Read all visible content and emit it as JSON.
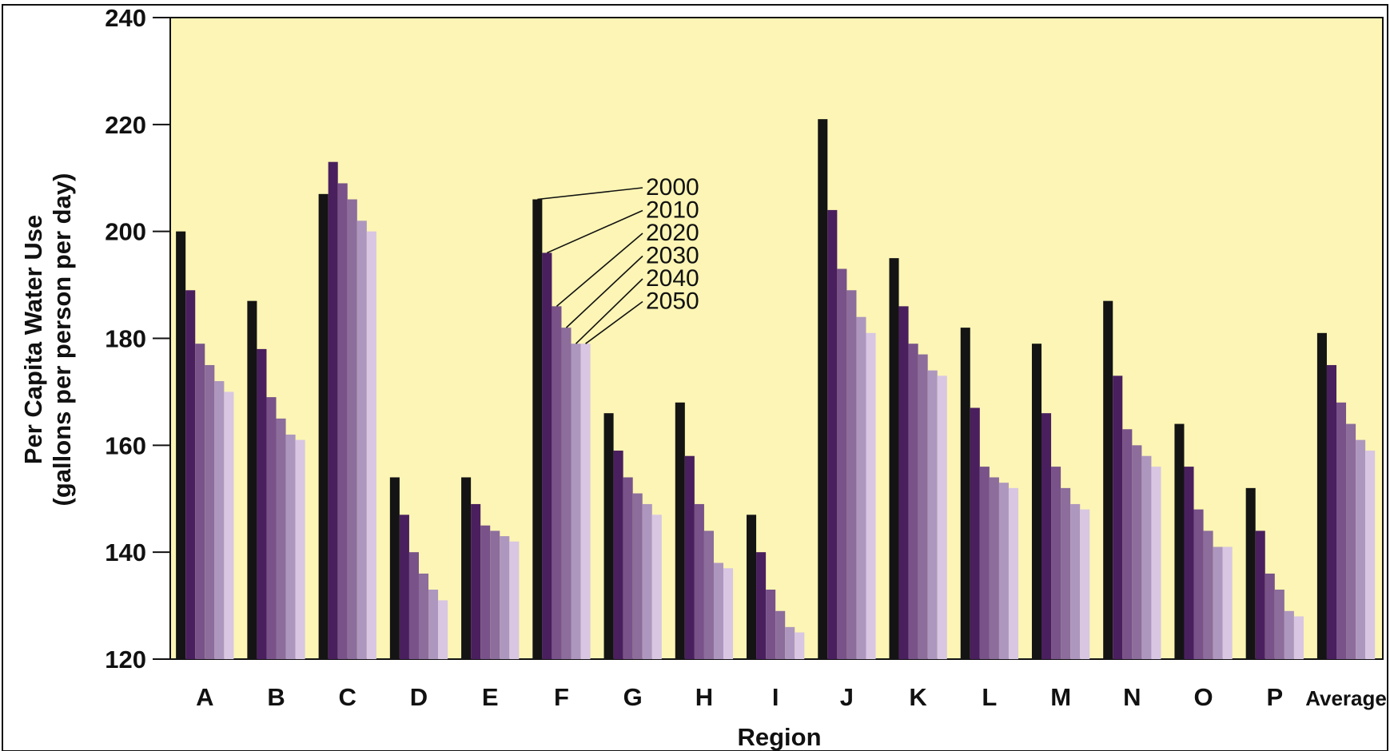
{
  "chart_data": {
    "type": "bar",
    "ylabel_line1": "Per Capita Water Use",
    "ylabel_line2": "(gallons per person per day)",
    "xlabel": "Region",
    "ylim": [
      120,
      240
    ],
    "yticks": [
      120,
      140,
      160,
      180,
      200,
      220,
      240
    ],
    "grid": false,
    "categories": [
      "A",
      "B",
      "C",
      "D",
      "E",
      "F",
      "G",
      "H",
      "I",
      "J",
      "K",
      "L",
      "M",
      "N",
      "O",
      "P",
      "Average"
    ],
    "series": [
      {
        "name": "2000",
        "color": "#141414",
        "values": [
          200,
          187,
          207,
          154,
          154,
          206,
          166,
          168,
          147,
          221,
          195,
          182,
          179,
          187,
          164,
          152,
          181
        ]
      },
      {
        "name": "2010",
        "color": "#4a1f5e",
        "values": [
          189,
          178,
          213,
          147,
          149,
          196,
          159,
          158,
          140,
          204,
          186,
          167,
          166,
          173,
          156,
          144,
          175
        ]
      },
      {
        "name": "2020",
        "color": "#785289",
        "values": [
          179,
          169,
          209,
          140,
          145,
          186,
          154,
          149,
          133,
          193,
          179,
          156,
          156,
          163,
          148,
          136,
          168
        ]
      },
      {
        "name": "2030",
        "color": "#8c6d9b",
        "values": [
          175,
          165,
          206,
          136,
          144,
          182,
          151,
          144,
          129,
          189,
          177,
          154,
          152,
          160,
          144,
          133,
          164
        ]
      },
      {
        "name": "2040",
        "color": "#ae97be",
        "values": [
          172,
          162,
          202,
          133,
          143,
          179,
          149,
          138,
          126,
          184,
          174,
          153,
          149,
          158,
          141,
          129,
          161
        ]
      },
      {
        "name": "2050",
        "color": "#d8c6e3",
        "values": [
          170,
          161,
          200,
          131,
          142,
          179,
          147,
          137,
          125,
          181,
          173,
          152,
          148,
          156,
          141,
          128,
          159
        ]
      }
    ],
    "annotation_category": "F"
  },
  "colors": {
    "plot_background": "#fcf5b5",
    "frame": "#111111"
  }
}
